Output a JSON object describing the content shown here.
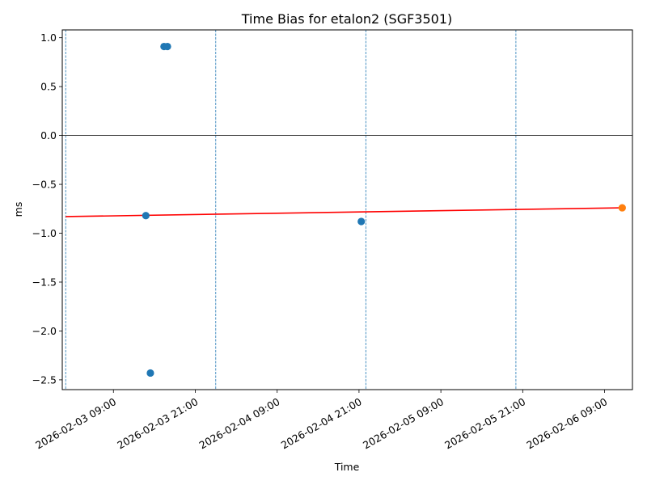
{
  "chart_data": {
    "type": "scatter",
    "title": "Time Bias for etalon2 (SGF3501)",
    "xlabel": "Time",
    "ylabel": "ms",
    "xlim": [
      "2026-02-03 01:30",
      "2026-02-06 13:05"
    ],
    "ylim": [
      -2.6,
      1.08
    ],
    "yticks": [
      1.0,
      0.5,
      0.0,
      -0.5,
      -1.0,
      -1.5,
      -2.0,
      -2.5
    ],
    "ytick_labels": [
      "1.0",
      "0.5",
      "0.0",
      "−0.5",
      "−1.0",
      "−1.5",
      "−2.0",
      "−2.5"
    ],
    "xticks": [
      "2026-02-03 09:00",
      "2026-02-03 21:00",
      "2026-02-04 09:00",
      "2026-02-04 21:00",
      "2026-02-05 09:00",
      "2026-02-05 21:00",
      "2026-02-06 09:00"
    ],
    "xtick_labels": [
      "2026-02-03 09:00",
      "2026-02-03 21:00",
      "2026-02-04 09:00",
      "2026-02-04 21:00",
      "2026-02-05 09:00",
      "2026-02-05 21:00",
      "2026-02-06 09:00"
    ],
    "grid": false,
    "horizontal_reference_line": 0.0,
    "vertical_dashed_lines": [
      "2026-02-03 02:00",
      "2026-02-04 00:00",
      "2026-02-04 22:00",
      "2026-02-05 20:00"
    ],
    "series": [
      {
        "color": "#1f77b4",
        "points": [
          {
            "x": "2026-02-03 13:45",
            "y": -0.82
          },
          {
            "x": "2026-02-03 14:25",
            "y": -2.43
          },
          {
            "x": "2026-02-03 16:25",
            "y": 0.91
          },
          {
            "x": "2026-02-03 16:55",
            "y": 0.91
          },
          {
            "x": "2026-02-04 21:20",
            "y": -0.88
          }
        ]
      },
      {
        "color": "#ff7f0e",
        "points": [
          {
            "x": "2026-02-06 11:35",
            "y": -0.74
          }
        ]
      }
    ],
    "fit_line": {
      "color": "#ff0000",
      "x": [
        "2026-02-03 02:00",
        "2026-02-06 11:35"
      ],
      "y": [
        -0.83,
        -0.74
      ]
    }
  }
}
